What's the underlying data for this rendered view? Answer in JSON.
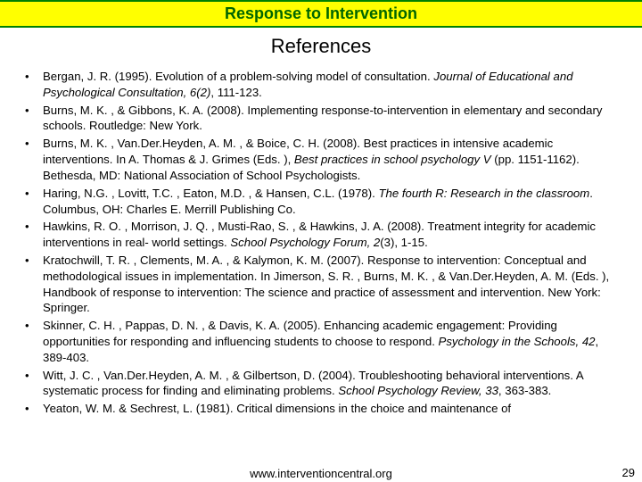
{
  "header": {
    "title": "Response to Intervention"
  },
  "section_title": "References",
  "references": [
    {
      "html": "Bergan, J. R. (1995). Evolution of a problem-solving model of consultation. <em>Journal of Educational and Psychological Consultation, 6(2)</em>, 111-123."
    },
    {
      "html": "Burns, M. K. , & Gibbons, K. A. (2008). Implementing response-to-intervention in elementary and secondary schools. Routledge: New York."
    },
    {
      "html": "Burns, M. K. , Van.Der.Heyden, A. M. , & Boice, C. H. (2008). Best practices in intensive academic interventions. In A. Thomas & J. Grimes (Eds. ), <em>Best practices in school psychology V</em> (pp. 1151-1162). Bethesda, MD: National Association of School Psychologists."
    },
    {
      "html": "Haring, N.G. , Lovitt, T.C. , Eaton, M.D. , & Hansen, C.L. (1978). <em>The fourth R: Research in the classroom</em>. Columbus, OH: Charles E. Merrill Publishing Co."
    },
    {
      "html": "Hawkins, R. O. , Morrison, J. Q. , Musti-Rao, S. , & Hawkins, J. A. (2008). Treatment integrity for academic interventions in real- world settings. <em>School Psychology Forum, 2</em>(3), 1-15."
    },
    {
      "html": "Kratochwill, T. R. , Clements, M. A. , & Kalymon, K. M. (2007). Response to intervention: Conceptual and methodological issues in implementation. In Jimerson, S. R. , Burns, M. K. , & Van.Der.Heyden, A. M. (Eds. ), Handbook of response to intervention: The science and practice of assessment and intervention. New York: Springer."
    },
    {
      "html": "Skinner, C. H. , Pappas, D. N. , & Davis, K. A. (2005). Enhancing academic engagement: Providing opportunities for responding and influencing students to choose to respond. <em>Psychology in the  Schools, 42</em>, 389-403."
    },
    {
      "html": "Witt, J. C. , Van.Der.Heyden, A. M. , & Gilbertson, D. (2004). Troubleshooting behavioral interventions. A systematic process for finding and eliminating problems. <em>School Psychology Review, 33</em>, 363-383."
    },
    {
      "html": "Yeaton, W. M. & Sechrest, L. (1981). Critical dimensions in the choice and maintenance of"
    }
  ],
  "footer": {
    "url": "www.interventioncentral.org"
  },
  "page_number": "29",
  "colors": {
    "header_bg": "#ffff00",
    "header_border": "#008000",
    "header_text": "#006600",
    "body_text": "#000000",
    "background": "#ffffff"
  },
  "typography": {
    "header_fontsize": 18,
    "section_title_fontsize": 22,
    "body_fontsize": 13.2,
    "footer_fontsize": 13
  }
}
